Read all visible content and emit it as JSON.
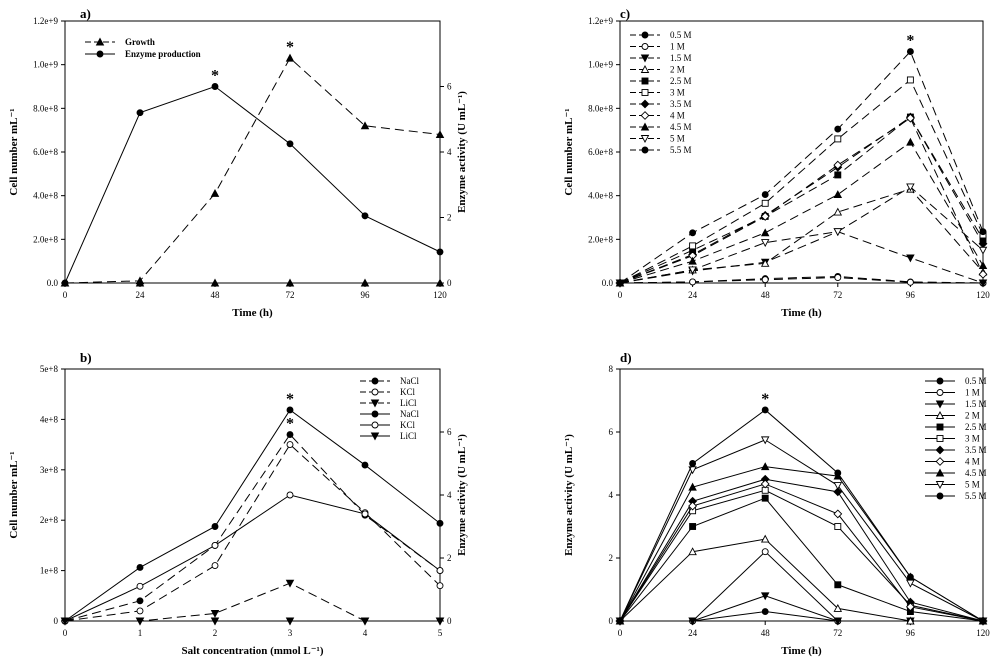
{
  "chart_data": [
    {
      "panel": "a)",
      "type": "line",
      "x": [
        0,
        24,
        48,
        72,
        96,
        120
      ],
      "xlabel": "Time (h)",
      "ylabel": "Cell number mL⁻¹",
      "y2label": "Enzyme activity (U mL⁻¹)",
      "xlim": [
        0,
        120
      ],
      "ylim": [
        0,
        1200000000.0
      ],
      "y2lim": [
        0,
        8
      ],
      "xticks": [
        "0",
        "24",
        "48",
        "72",
        "96",
        "120"
      ],
      "yticks": [
        "0.0",
        "2.0e+8",
        "4.0e+8",
        "6.0e+8",
        "8.0e+8",
        "1.0e+9",
        "1.2e+9"
      ],
      "y2ticks": [
        "0",
        "2",
        "4",
        "6"
      ],
      "legend": "top-left",
      "series": [
        {
          "name": "Growth",
          "axis": "left",
          "dash": true,
          "marker": "triangle",
          "values": [
            0,
            10000000.0,
            410000000.0,
            1030000000.0,
            720000000.0,
            680000000.0
          ]
        },
        {
          "name": "Enzyme production",
          "axis": "right",
          "dash": false,
          "marker": "circle",
          "values": [
            0,
            5.2,
            6.0,
            4.25,
            2.05,
            0.95
          ]
        },
        {
          "name": "",
          "axis": "left",
          "dash": false,
          "marker": "triangle",
          "values": [
            0,
            0,
            0,
            0,
            0,
            0
          ]
        }
      ],
      "stars": [
        {
          "x": 48,
          "y": 6.0,
          "axis": "right"
        },
        {
          "x": 72,
          "y": 1030000000.0,
          "axis": "left"
        }
      ]
    },
    {
      "panel": "b)",
      "type": "line",
      "x": [
        0,
        1,
        2,
        3,
        4,
        5
      ],
      "xlabel": "Salt concentration (mmol L⁻¹)",
      "ylabel": "Cell number mL⁻¹",
      "y2label": "Enzyme activity (U mL⁻¹)",
      "xlim": [
        0,
        5
      ],
      "ylim": [
        0,
        500000000.0
      ],
      "y2lim": [
        0,
        8
      ],
      "xticks": [
        "0",
        "1",
        "2",
        "3",
        "4",
        "5"
      ],
      "yticks": [
        "0",
        "1e+8",
        "2e+8",
        "3e+8",
        "4e+8",
        "5e+8"
      ],
      "y2ticks": [
        "0",
        "2",
        "4",
        "6"
      ],
      "legend": "top-right",
      "series": [
        {
          "name": "NaCl",
          "axis": "left",
          "dash": true,
          "marker": "circle",
          "values": [
            0,
            40000000.0,
            150000000.0,
            370000000.0,
            210000000.0,
            100000000.0
          ]
        },
        {
          "name": "KCl",
          "axis": "left",
          "dash": true,
          "marker": "circle-open",
          "values": [
            0,
            20000000.0,
            110000000.0,
            350000000.0,
            215000000.0,
            70000000.0
          ]
        },
        {
          "name": "LiCl",
          "axis": "left",
          "dash": true,
          "marker": "triangle-down",
          "values": [
            0,
            0,
            15000000.0,
            75000000.0,
            0,
            0
          ]
        },
        {
          "name": "NaCl",
          "axis": "right",
          "dash": false,
          "marker": "circle",
          "values": [
            0,
            1.7,
            3.0,
            6.7,
            4.95,
            3.1
          ]
        },
        {
          "name": "KCl",
          "axis": "right",
          "dash": false,
          "marker": "circle-open",
          "values": [
            0,
            1.1,
            2.4,
            4.0,
            3.4,
            1.6
          ]
        },
        {
          "name": "LiCl",
          "axis": "right",
          "dash": false,
          "marker": "triangle-down",
          "values": [
            0,
            0,
            0,
            0,
            0,
            0
          ]
        }
      ],
      "stars": [
        {
          "x": 3,
          "y": 6.7,
          "axis": "right"
        },
        {
          "x": 3,
          "y": 370000000.0,
          "axis": "left"
        }
      ]
    },
    {
      "panel": "c)",
      "type": "line",
      "x": [
        0,
        24,
        48,
        72,
        96,
        120
      ],
      "xlabel": "Time (h)",
      "ylabel": "Cell number mL⁻¹",
      "xlim": [
        0,
        120
      ],
      "ylim": [
        0,
        1200000000.0
      ],
      "xticks": [
        "0",
        "24",
        "48",
        "72",
        "96",
        "120"
      ],
      "yticks": [
        "0.0",
        "2.0e+8",
        "4.0e+8",
        "6.0e+8",
        "8.0e+8",
        "1.0e+9",
        "1.2e+9"
      ],
      "legend": "top-left",
      "series": [
        {
          "name": "0.5 M",
          "marker": "circle",
          "values": [
            0,
            5000000.0,
            20000000.0,
            30000000.0,
            5000000.0,
            0
          ]
        },
        {
          "name": "1 M",
          "marker": "circle-open",
          "values": [
            0,
            5000000.0,
            15000000.0,
            25000000.0,
            3000000.0,
            0
          ]
        },
        {
          "name": "1.5 M",
          "marker": "triangle-down",
          "values": [
            0,
            55000000.0,
            95000000.0,
            235000000.0,
            115000000.0,
            0
          ]
        },
        {
          "name": "2 M",
          "marker": "triangle-open",
          "values": [
            0,
            60000000.0,
            90000000.0,
            325000000.0,
            430000000.0,
            50000000.0
          ]
        },
        {
          "name": "2.5 M",
          "marker": "square",
          "values": [
            0,
            150000000.0,
            305000000.0,
            495000000.0,
            760000000.0,
            200000000.0
          ]
        },
        {
          "name": "3 M",
          "marker": "square-open",
          "values": [
            0,
            170000000.0,
            365000000.0,
            660000000.0,
            930000000.0,
            220000000.0
          ]
        },
        {
          "name": "3.5 M",
          "marker": "diamond",
          "values": [
            0,
            130000000.0,
            310000000.0,
            530000000.0,
            760000000.0,
            180000000.0
          ]
        },
        {
          "name": "4 M",
          "marker": "diamond-open",
          "values": [
            0,
            125000000.0,
            305000000.0,
            540000000.0,
            755000000.0,
            40000000.0
          ]
        },
        {
          "name": "4.5 M",
          "marker": "triangle",
          "values": [
            0,
            100000000.0,
            230000000.0,
            405000000.0,
            645000000.0,
            80000000.0
          ]
        },
        {
          "name": "5 M",
          "marker": "triangle-down-open",
          "values": [
            0,
            60000000.0,
            185000000.0,
            235000000.0,
            440000000.0,
            150000000.0
          ]
        },
        {
          "name": "5.5 M",
          "marker": "circle",
          "values": [
            0,
            230000000.0,
            405000000.0,
            705000000.0,
            1060000000.0,
            235000000.0
          ]
        }
      ],
      "stars": [
        {
          "x": 96,
          "y": 1060000000.0
        }
      ]
    },
    {
      "panel": "d)",
      "type": "line",
      "x": [
        0,
        24,
        48,
        72,
        96,
        120
      ],
      "xlabel": "Time (h)",
      "ylabel": "Enzyme activity (U mL⁻¹)",
      "xlim": [
        0,
        120
      ],
      "ylim": [
        0,
        8
      ],
      "xticks": [
        "0",
        "24",
        "48",
        "72",
        "96",
        "120"
      ],
      "yticks": [
        "0",
        "2",
        "4",
        "6",
        "8"
      ],
      "legend": "top-right",
      "series": [
        {
          "name": "0.5 M",
          "marker": "circle",
          "values": [
            0,
            0,
            0.3,
            0,
            0,
            0
          ]
        },
        {
          "name": "1 M",
          "marker": "circle-open",
          "values": [
            0,
            0,
            2.2,
            0,
            0,
            0
          ]
        },
        {
          "name": "1.5 M",
          "marker": "triangle-down",
          "values": [
            0,
            0,
            0.8,
            0,
            0,
            0
          ]
        },
        {
          "name": "2 M",
          "marker": "triangle-open",
          "values": [
            0,
            2.2,
            2.6,
            0.4,
            0,
            0
          ]
        },
        {
          "name": "2.5 M",
          "marker": "square",
          "values": [
            0,
            3.0,
            3.9,
            1.15,
            0.3,
            0
          ]
        },
        {
          "name": "3 M",
          "marker": "square-open",
          "values": [
            0,
            3.5,
            4.15,
            3.0,
            0.5,
            0
          ]
        },
        {
          "name": "3.5 M",
          "marker": "diamond",
          "values": [
            0,
            3.8,
            4.5,
            4.1,
            0.6,
            0
          ]
        },
        {
          "name": "4 M",
          "marker": "diamond-open",
          "values": [
            0,
            3.65,
            4.35,
            3.4,
            0.45,
            0
          ]
        },
        {
          "name": "4.5 M",
          "marker": "triangle",
          "values": [
            0,
            4.25,
            4.9,
            4.6,
            1.4,
            0
          ]
        },
        {
          "name": "5 M",
          "marker": "triangle-down-open",
          "values": [
            0,
            4.8,
            5.75,
            4.3,
            1.2,
            0
          ]
        },
        {
          "name": "5.5 M",
          "marker": "circle",
          "values": [
            0,
            5.0,
            6.7,
            4.7,
            1.4,
            0
          ]
        }
      ],
      "stars": [
        {
          "x": 48,
          "y": 6.7
        }
      ]
    }
  ]
}
